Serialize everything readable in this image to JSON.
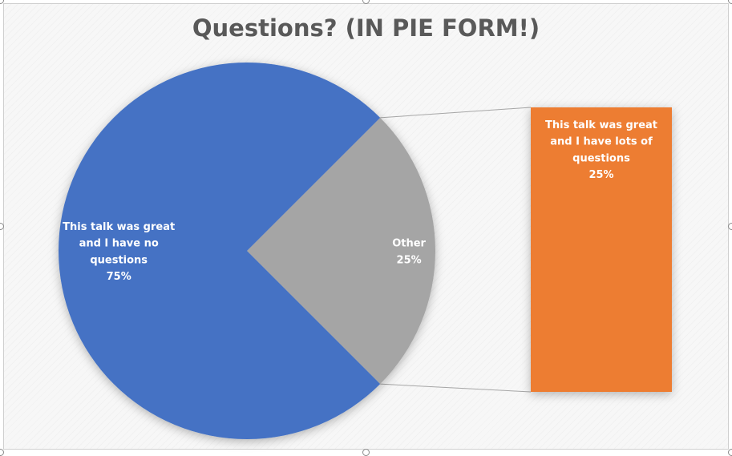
{
  "chart_data": {
    "type": "pie",
    "title": "Questions? (IN PIE FORM!)",
    "subtype": "bar-of-pie",
    "pie": {
      "slices": [
        {
          "label_lines": [
            "This talk was great",
            "and I have no",
            "questions"
          ],
          "value": 75,
          "value_text": "75%",
          "color": "#4472c4"
        },
        {
          "label_lines": [
            "Other"
          ],
          "value": 25,
          "value_text": "25%",
          "color": "#a5a5a5"
        }
      ]
    },
    "secondary_bar": {
      "segments": [
        {
          "label_lines": [
            "This talk was great",
            "and I have lots of",
            "questions"
          ],
          "value": 25,
          "value_text": "25%",
          "color": "#ed7d31"
        }
      ]
    },
    "connector_color": "#a6a6a6"
  }
}
